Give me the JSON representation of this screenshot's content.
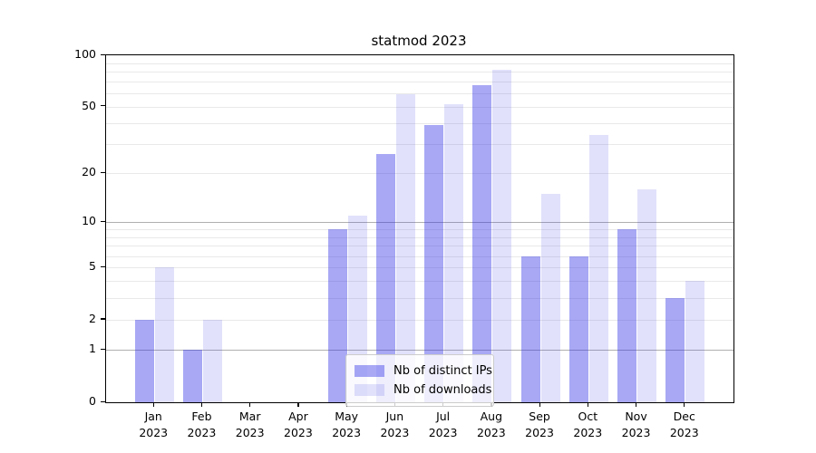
{
  "figure": {
    "title": "statmod 2023",
    "background_color": "#ffffff"
  },
  "chart_data": {
    "type": "bar",
    "title": "statmod 2023",
    "categories": [
      "Jan 2023",
      "Feb 2023",
      "Mar 2023",
      "Apr 2023",
      "May 2023",
      "Jun 2023",
      "Jul 2023",
      "Aug 2023",
      "Sep 2023",
      "Oct 2023",
      "Nov 2023",
      "Dec 2023"
    ],
    "x_tick_labels": [
      {
        "month": "Jan",
        "year": "2023"
      },
      {
        "month": "Feb",
        "year": "2023"
      },
      {
        "month": "Mar",
        "year": "2023"
      },
      {
        "month": "Apr",
        "year": "2023"
      },
      {
        "month": "May",
        "year": "2023"
      },
      {
        "month": "Jun",
        "year": "2023"
      },
      {
        "month": "Jul",
        "year": "2023"
      },
      {
        "month": "Aug",
        "year": "2023"
      },
      {
        "month": "Sep",
        "year": "2023"
      },
      {
        "month": "Oct",
        "year": "2023"
      },
      {
        "month": "Nov",
        "year": "2023"
      },
      {
        "month": "Dec",
        "year": "2023"
      }
    ],
    "series": [
      {
        "name": "Nb of distinct IPs",
        "values": [
          2,
          1,
          0,
          0,
          9,
          26,
          39,
          67,
          6,
          6,
          9,
          3
        ],
        "color": "#a9a9f6",
        "base_color": "#2c2ce6",
        "alpha": 0.41
      },
      {
        "name": "Nb of downloads",
        "values": [
          5,
          2,
          0,
          0,
          11,
          59,
          52,
          82,
          15,
          34,
          16,
          4
        ],
        "color": "#dcdcfa",
        "base_color": "#2c2ce6",
        "alpha": 0.14
      }
    ],
    "xlabel": "",
    "ylabel": "",
    "yscale": "log1p",
    "ylim": [
      0,
      100
    ],
    "y_tick_values": [
      0,
      1,
      2,
      5,
      10,
      20,
      50,
      100
    ],
    "y_tick_labels": [
      "0",
      "1",
      "2",
      "5",
      "10",
      "20",
      "50",
      "100"
    ],
    "grid": true,
    "grid_dark_values": [
      1,
      10
    ],
    "grid_light_values": [
      2,
      3,
      4,
      5,
      6,
      7,
      8,
      9,
      20,
      30,
      40,
      50,
      60,
      70,
      80,
      90
    ],
    "grid_dark_color": "#b0b0b0",
    "grid_light_color": "#e9e9e9",
    "legend_position": "lower center"
  }
}
